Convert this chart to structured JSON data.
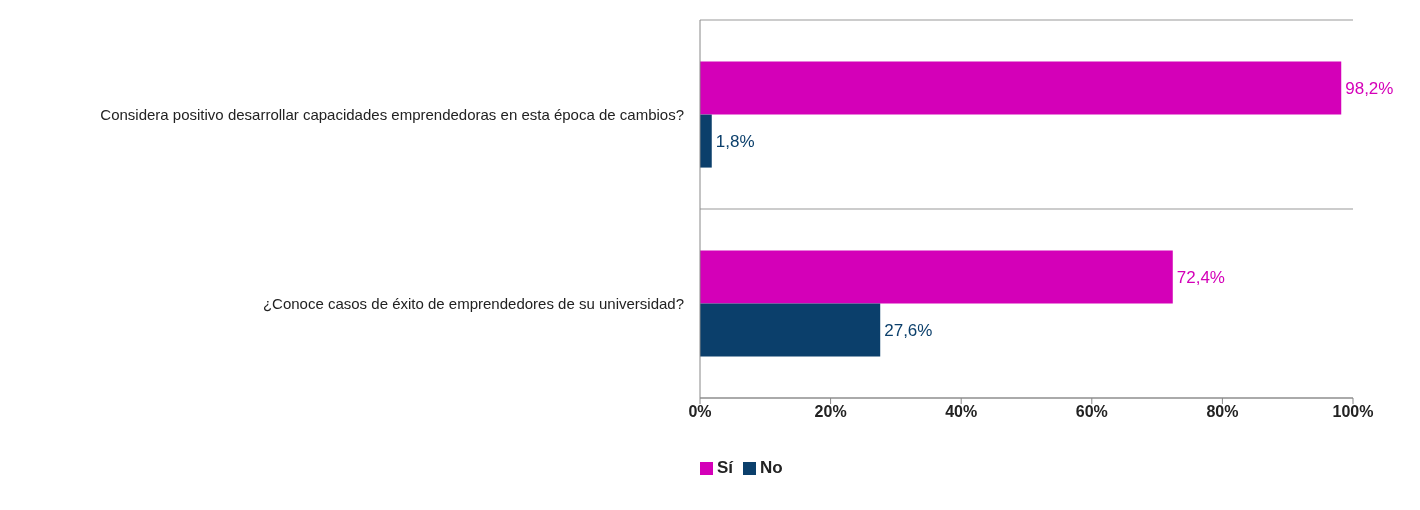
{
  "chart_data": {
    "type": "bar",
    "orientation": "horizontal",
    "categories": [
      "Considera positivo desarrollar capacidades emprendedoras en esta época de cambios?",
      "¿Conoce casos de éxito de emprendedores de su universidad?"
    ],
    "series": [
      {
        "name": "Sí",
        "color": "#d400b8",
        "values": [
          98.2,
          72.4
        ],
        "value_labels": [
          "98,2%",
          "72,4%"
        ]
      },
      {
        "name": "No",
        "color": "#0b3f6b",
        "values": [
          1.8,
          27.6
        ],
        "value_labels": [
          "1,8%",
          "27,6%"
        ]
      }
    ],
    "xlim": [
      0,
      100
    ],
    "xticks": [
      {
        "value": 0,
        "label": "0%"
      },
      {
        "value": 20,
        "label": "20%"
      },
      {
        "value": 40,
        "label": "40%"
      },
      {
        "value": 60,
        "label": "60%"
      },
      {
        "value": 80,
        "label": "80%"
      },
      {
        "value": 100,
        "label": "100%"
      }
    ],
    "grid": "y",
    "legend": "bottom"
  }
}
